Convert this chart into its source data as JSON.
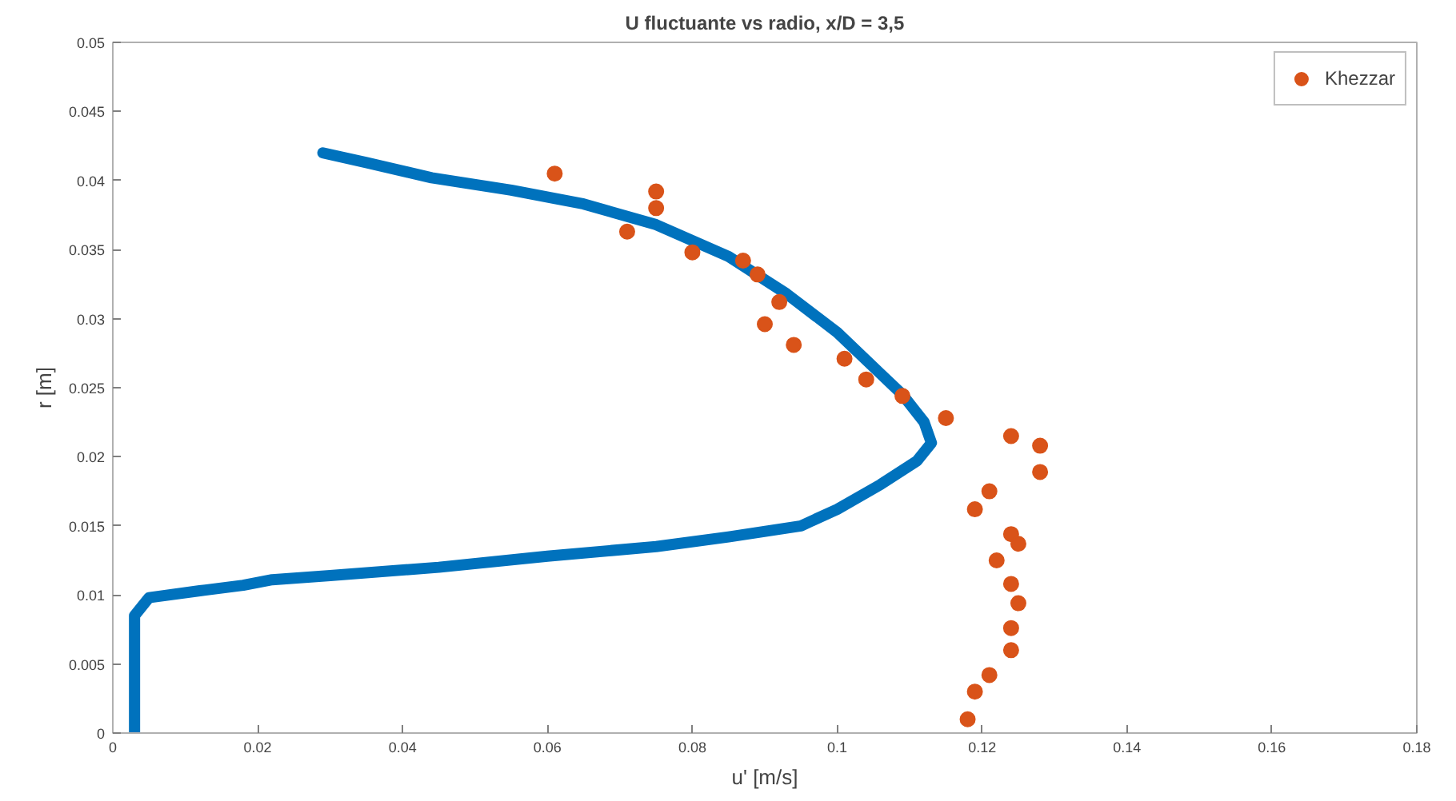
{
  "chart_data": {
    "type": "line",
    "title": "U fluctuante vs radio, x/D = 3,5",
    "xlabel": "u' [m/s]",
    "ylabel": "r [m]",
    "xlim": [
      0,
      0.18
    ],
    "ylim": [
      0,
      0.05
    ],
    "xticks": [
      0,
      0.02,
      0.04,
      0.06,
      0.08,
      0.1,
      0.12,
      0.14,
      0.16,
      0.18
    ],
    "yticks": [
      0,
      0.005,
      0.01,
      0.015,
      0.02,
      0.025,
      0.03,
      0.035,
      0.04,
      0.045,
      0.05
    ],
    "grid": false,
    "legend": "top right",
    "series": [
      {
        "color": "#0072bd",
        "x": [
          0.003,
          0.003,
          0.005,
          0.012,
          0.018,
          0.022,
          0.03,
          0.045,
          0.06,
          0.075,
          0.085,
          0.095,
          0.1,
          0.106,
          0.111,
          0.113,
          0.112,
          0.109,
          0.106,
          0.1,
          0.093,
          0.085,
          0.075,
          0.065,
          0.055,
          0.044,
          0.035,
          0.029
        ],
        "values": [
          0,
          0.0085,
          0.0098,
          0.0103,
          0.0107,
          0.0111,
          0.0114,
          0.012,
          0.0128,
          0.0135,
          0.0142,
          0.015,
          0.0162,
          0.018,
          0.0197,
          0.021,
          0.0225,
          0.0245,
          0.026,
          0.029,
          0.0318,
          0.0345,
          0.0368,
          0.0383,
          0.0393,
          0.0402,
          0.0413,
          0.042
        ]
      },
      {
        "type": "scatter",
        "name": "Khezzar",
        "color": "#d95319",
        "marker": "circle",
        "x": [
          0.061,
          0.075,
          0.075,
          0.071,
          0.08,
          0.087,
          0.089,
          0.092,
          0.09,
          0.094,
          0.101,
          0.104,
          0.109,
          0.115,
          0.124,
          0.128,
          0.128,
          0.121,
          0.119,
          0.124,
          0.125,
          0.122,
          0.124,
          0.125,
          0.124,
          0.124,
          0.121,
          0.119,
          0.118
        ],
        "values": [
          0.0405,
          0.0392,
          0.038,
          0.0363,
          0.0348,
          0.0342,
          0.0332,
          0.0312,
          0.0296,
          0.0281,
          0.0271,
          0.0256,
          0.0244,
          0.0228,
          0.0215,
          0.0208,
          0.0189,
          0.0175,
          0.0162,
          0.0144,
          0.0137,
          0.0125,
          0.0108,
          0.0094,
          0.0076,
          0.006,
          0.0042,
          0.003,
          0.001
        ]
      }
    ]
  }
}
